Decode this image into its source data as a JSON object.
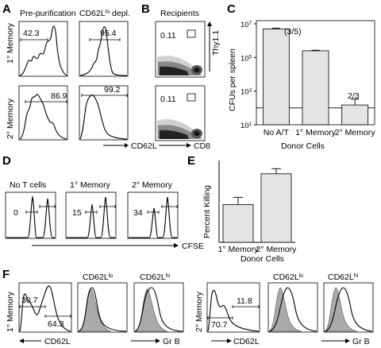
{
  "panels": {
    "A": {
      "letter": "A",
      "col_titles": [
        "Pre-purification",
        "CD62L"
      ],
      "col2_sup": "hi",
      "col2_suffix": " depl.",
      "row_labels": [
        "1° Memory",
        "2° Memory"
      ],
      "xlabel": "CD62L",
      "values": [
        "42.3",
        "95.4",
        "86.9",
        "99.2"
      ]
    },
    "B": {
      "letter": "B",
      "title": "Recipients",
      "values": [
        "0.11",
        "0.11"
      ],
      "ylabel": "Thy1.1",
      "xlabel": "CD8"
    },
    "C": {
      "letter": "C",
      "ylabel": "CFUs per spleen",
      "xlabel": "Donor Cells",
      "yticks": [
        "10",
        "10",
        "10",
        "10"
      ],
      "ytick_exps": [
        "7",
        "5",
        "3",
        "1"
      ],
      "annotations": [
        "(3/5)",
        "2/3"
      ]
    },
    "D": {
      "letter": "D",
      "titles": [
        "No T cells",
        "1° Memory",
        "2° Memory"
      ],
      "values": [
        "0",
        "15",
        "34"
      ],
      "xlabel": "CFSE"
    },
    "E": {
      "letter": "E",
      "ylabel": "Percent Killing",
      "xlabel": "Donor Cells"
    },
    "F": {
      "letter": "F",
      "row_labels": [
        "1° Memory",
        "2° Memory"
      ],
      "hist_titles": [
        "CD62L",
        "CD62L"
      ],
      "hist_sups": [
        "lo",
        "hi"
      ],
      "values_left": [
        "30.7",
        "64.3"
      ],
      "values_right": [
        "11.8",
        "70.7"
      ],
      "xlabels": [
        "CD62L",
        "Gr B"
      ]
    }
  },
  "chart_data": [
    {
      "type": "bar",
      "title": "",
      "xlabel": "Donor Cells",
      "ylabel": "CFUs per spleen",
      "yscale": "log",
      "ylim": [
        10,
        10000000
      ],
      "categories": [
        "No A/T",
        "1° Memory",
        "2° Memory"
      ],
      "values": [
        5000000,
        250000,
        150
      ],
      "errors": [
        600000,
        20000,
        180
      ],
      "reference_line": 100
    },
    {
      "type": "bar",
      "title": "",
      "xlabel": "Donor Cells",
      "ylabel": "Percent Killing",
      "ylim": [
        0,
        40
      ],
      "categories": [
        "1° Memory",
        "2° Memory"
      ],
      "values": [
        18.5,
        33.5
      ],
      "errors": [
        3.5,
        2.5
      ]
    }
  ]
}
